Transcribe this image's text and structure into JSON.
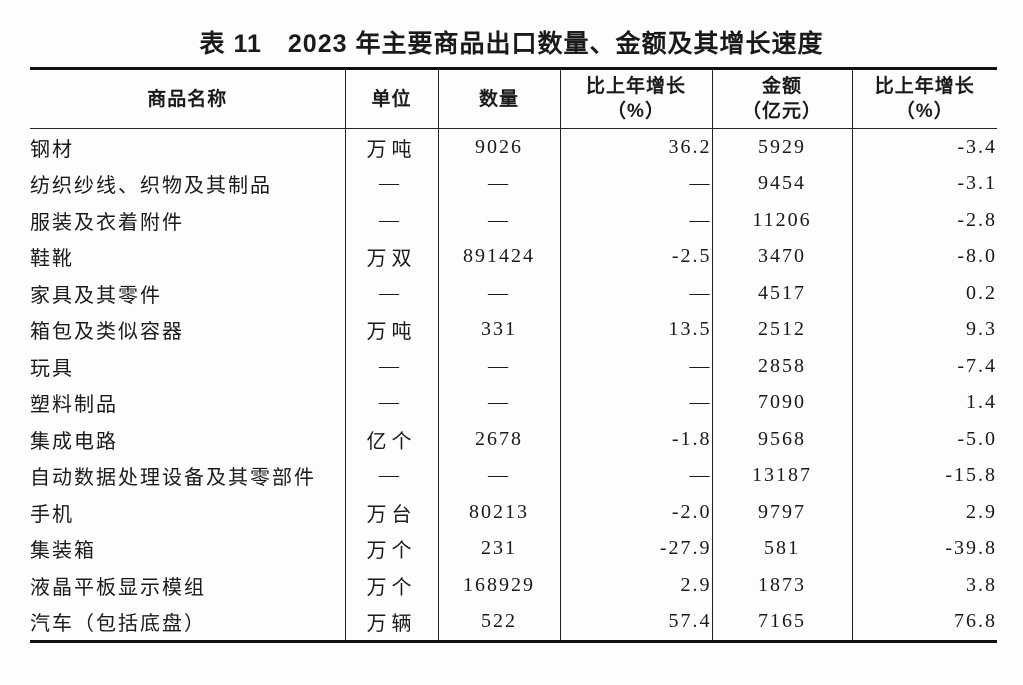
{
  "page": {
    "background_color": "#fdfdfd",
    "text_color": "#1a1a1a",
    "border_color": "#111111"
  },
  "title": {
    "label": "表 11",
    "text": "2023 年主要商品出口数量、金额及其增长速度"
  },
  "table": {
    "empty_marker": "—",
    "headers": [
      {
        "line1": "商品名称",
        "line2": ""
      },
      {
        "line1": "单位",
        "line2": ""
      },
      {
        "line1": "数量",
        "line2": ""
      },
      {
        "line1": "比上年增长",
        "line2": "（%）"
      },
      {
        "line1": "金额",
        "line2": "（亿元）"
      },
      {
        "line1": "比上年增长",
        "line2": "（%）"
      }
    ],
    "rows": [
      {
        "name": "钢材",
        "unit": "万吨",
        "quantity": "9026",
        "quantity_growth": "36.2",
        "amount": "5929",
        "amount_growth": "-3.4"
      },
      {
        "name": "纺织纱线、织物及其制品",
        "unit": "—",
        "quantity": "—",
        "quantity_growth": "—",
        "amount": "9454",
        "amount_growth": "-3.1"
      },
      {
        "name": "服装及衣着附件",
        "unit": "—",
        "quantity": "—",
        "quantity_growth": "—",
        "amount": "11206",
        "amount_growth": "-2.8"
      },
      {
        "name": "鞋靴",
        "unit": "万双",
        "quantity": "891424",
        "quantity_growth": "-2.5",
        "amount": "3470",
        "amount_growth": "-8.0"
      },
      {
        "name": "家具及其零件",
        "unit": "—",
        "quantity": "—",
        "quantity_growth": "—",
        "amount": "4517",
        "amount_growth": "0.2"
      },
      {
        "name": "箱包及类似容器",
        "unit": "万吨",
        "quantity": "331",
        "quantity_growth": "13.5",
        "amount": "2512",
        "amount_growth": "9.3"
      },
      {
        "name": "玩具",
        "unit": "—",
        "quantity": "—",
        "quantity_growth": "—",
        "amount": "2858",
        "amount_growth": "-7.4"
      },
      {
        "name": "塑料制品",
        "unit": "—",
        "quantity": "—",
        "quantity_growth": "—",
        "amount": "7090",
        "amount_growth": "1.4"
      },
      {
        "name": "集成电路",
        "unit": "亿个",
        "quantity": "2678",
        "quantity_growth": "-1.8",
        "amount": "9568",
        "amount_growth": "-5.0"
      },
      {
        "name": "自动数据处理设备及其零部件",
        "unit": "—",
        "quantity": "—",
        "quantity_growth": "—",
        "amount": "13187",
        "amount_growth": "-15.8"
      },
      {
        "name": "手机",
        "unit": "万台",
        "quantity": "80213",
        "quantity_growth": "-2.0",
        "amount": "9797",
        "amount_growth": "2.9"
      },
      {
        "name": "集装箱",
        "unit": "万个",
        "quantity": "231",
        "quantity_growth": "-27.9",
        "amount": "581",
        "amount_growth": "-39.8"
      },
      {
        "name": "液晶平板显示模组",
        "unit": "万个",
        "quantity": "168929",
        "quantity_growth": "2.9",
        "amount": "1873",
        "amount_growth": "3.8"
      },
      {
        "name": "汽车（包括底盘）",
        "unit": "万辆",
        "quantity": "522",
        "quantity_growth": "57.4",
        "amount": "7165",
        "amount_growth": "76.8"
      }
    ]
  }
}
